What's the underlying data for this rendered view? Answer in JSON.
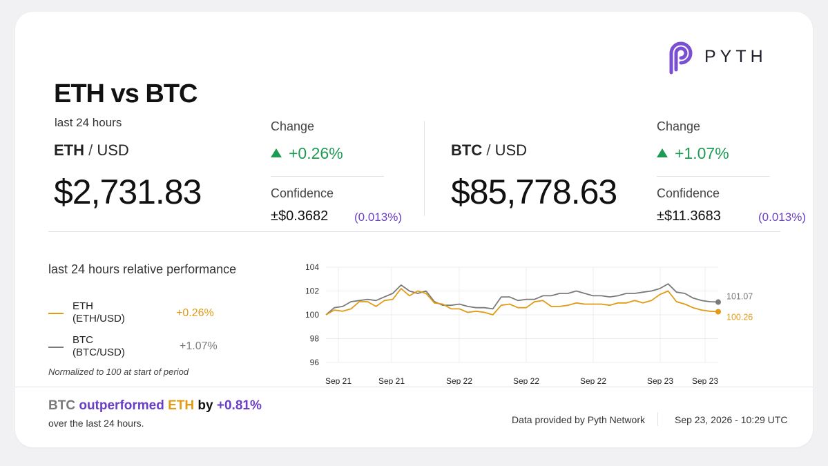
{
  "brand": {
    "name": "PYTH",
    "color": "#7b4fd1"
  },
  "header": {
    "title": "ETH vs BTC",
    "subtitle": "last 24 hours"
  },
  "eth": {
    "base": "ETH",
    "quote": "USD",
    "price": "$2,731.83",
    "change_label": "Change",
    "change": "+0.26%",
    "confidence_label": "Confidence",
    "confidence": "±$0.3682",
    "confidence_pct": "(0.013%)"
  },
  "btc": {
    "base": "BTC",
    "quote": "USD",
    "price": "$85,778.63",
    "change_label": "Change",
    "change": "+1.07%",
    "confidence_label": "Confidence",
    "confidence": "±$11.3683",
    "confidence_pct": "(0.013%)"
  },
  "performance": {
    "title": "last 24 hours relative performance",
    "legend": [
      {
        "name": "ETH",
        "pair": "(ETH/USD)",
        "value": "+0.26%",
        "color": "#e09a14"
      },
      {
        "name": "BTC",
        "pair": "(BTC/USD)",
        "value": "+1.07%",
        "color": "#7a7a7a"
      }
    ],
    "note": "Normalized to 100 at start of period"
  },
  "chart_data": {
    "type": "line",
    "yticks": [
      "104",
      "102",
      "100",
      "98",
      "96"
    ],
    "ylim": [
      96,
      104
    ],
    "xticks": [
      "Sep 21",
      "Sep 21",
      "Sep 22",
      "Sep 22",
      "Sep 22",
      "Sep 23",
      "Sep 23"
    ],
    "grid": true,
    "series": [
      {
        "name": "ETH",
        "color": "#e09a14",
        "end_label": "100.26",
        "values": [
          100.0,
          100.4,
          100.3,
          100.5,
          101.1,
          101.1,
          100.7,
          101.2,
          101.3,
          102.2,
          101.6,
          102.0,
          101.8,
          101.0,
          100.9,
          100.5,
          100.5,
          100.2,
          100.3,
          100.2,
          100.0,
          100.8,
          100.9,
          100.6,
          100.6,
          101.1,
          101.2,
          100.7,
          100.7,
          100.8,
          101.0,
          100.9,
          100.9,
          100.9,
          100.8,
          101.0,
          101.0,
          101.2,
          101.0,
          101.2,
          101.7,
          102.0,
          101.1,
          100.9,
          100.6,
          100.4,
          100.3,
          100.26
        ]
      },
      {
        "name": "BTC",
        "color": "#7a7a7a",
        "end_label": "101.07",
        "values": [
          100.0,
          100.6,
          100.7,
          101.1,
          101.2,
          101.3,
          101.2,
          101.5,
          101.8,
          102.5,
          102.0,
          101.8,
          102.0,
          101.1,
          100.8,
          100.8,
          100.9,
          100.7,
          100.6,
          100.6,
          100.5,
          101.5,
          101.5,
          101.2,
          101.3,
          101.3,
          101.6,
          101.6,
          101.8,
          101.8,
          102.0,
          101.8,
          101.6,
          101.6,
          101.5,
          101.6,
          101.8,
          101.8,
          101.9,
          102.0,
          102.2,
          102.6,
          101.9,
          101.8,
          101.4,
          101.2,
          101.1,
          101.07
        ]
      }
    ]
  },
  "footer": {
    "w1": "BTC",
    "w2": "outperformed",
    "w3": "ETH",
    "w4": "by",
    "w5": "+0.81%",
    "sub": "over the last 24 hours.",
    "source": "Data provided by Pyth Network",
    "timestamp": "Sep 23, 2026 - 10:29 UTC"
  }
}
